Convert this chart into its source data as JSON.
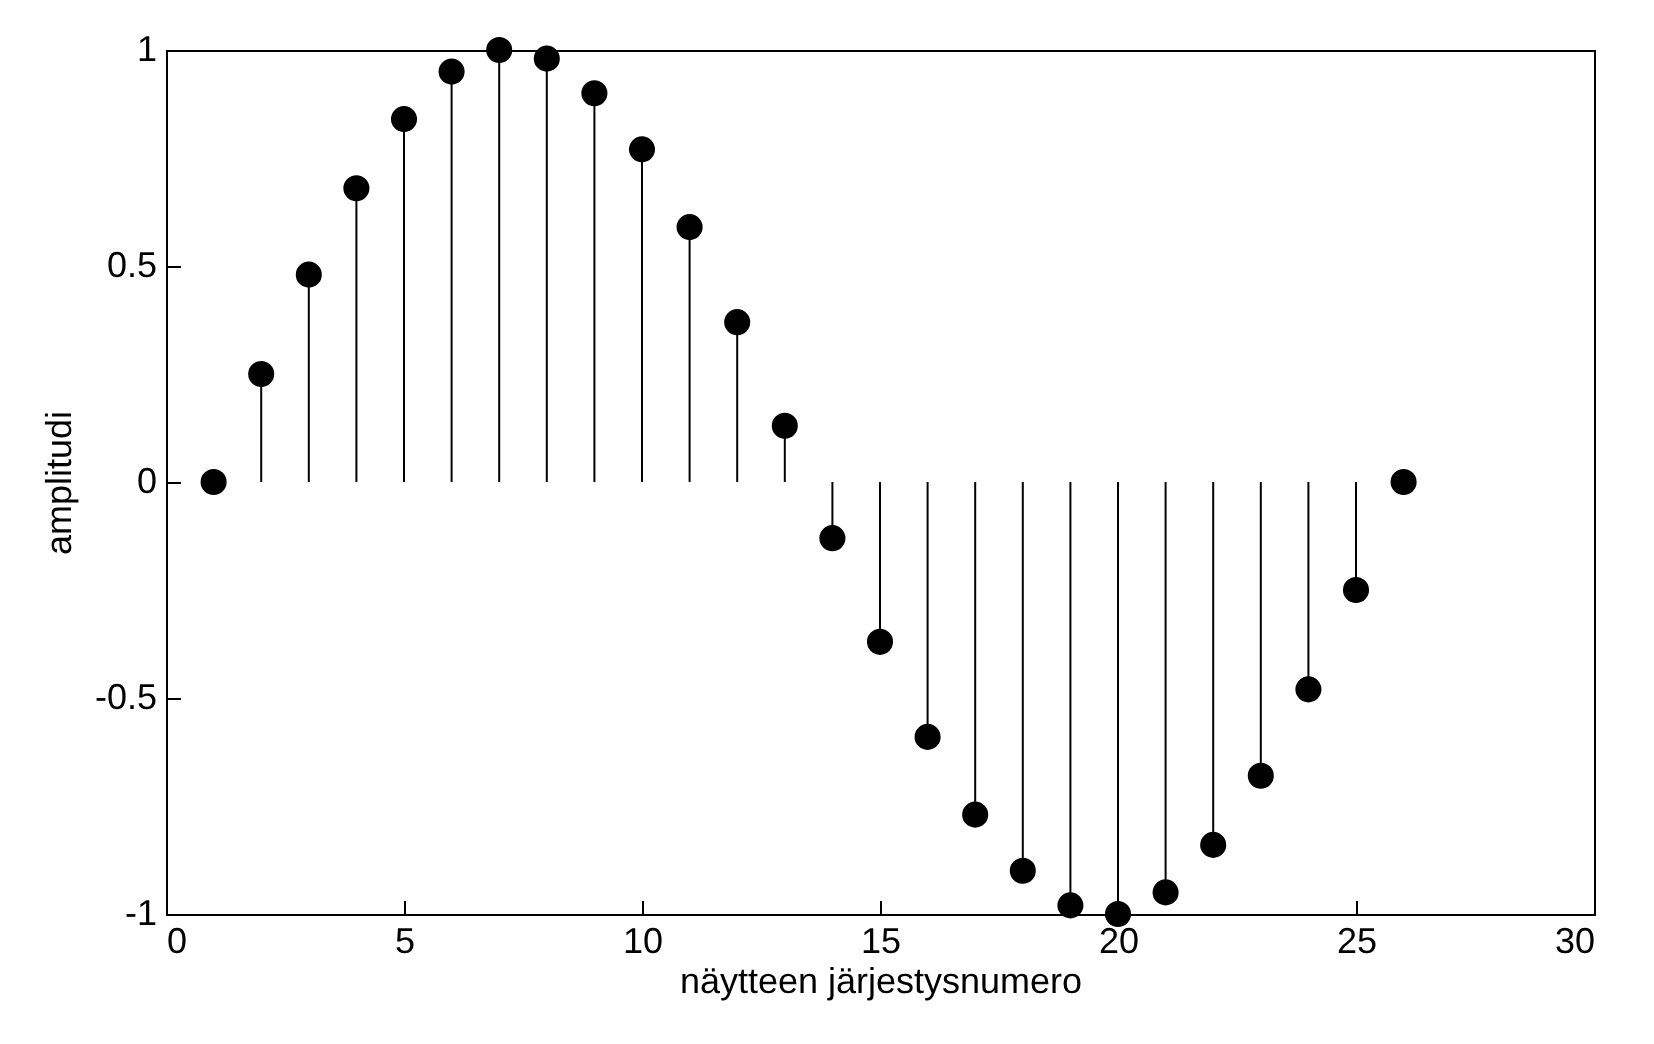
{
  "chart_data": {
    "type": "lollipop",
    "xlabel": "näytteen järjestysnumero",
    "ylabel": "amplitudi",
    "x": [
      1,
      2,
      3,
      4,
      5,
      6,
      7,
      8,
      9,
      10,
      11,
      12,
      13,
      14,
      15,
      16,
      17,
      18,
      19,
      20,
      21,
      22,
      23,
      24,
      25,
      26
    ],
    "values": [
      0,
      0.25,
      0.48,
      0.68,
      0.84,
      0.95,
      1.0,
      0.98,
      0.9,
      0.77,
      0.59,
      0.37,
      0.13,
      -0.13,
      -0.37,
      -0.59,
      -0.77,
      -0.9,
      -0.98,
      -1.0,
      -0.95,
      -0.84,
      -0.68,
      -0.48,
      -0.25,
      0
    ],
    "color": "#000000",
    "marker": "circle",
    "xlim": [
      0,
      30
    ],
    "xticks": [
      0,
      5,
      10,
      15,
      20,
      25,
      30
    ],
    "ylim": [
      -1,
      1
    ],
    "yticks": [
      -1,
      -0.5,
      0,
      0.5,
      1
    ]
  }
}
